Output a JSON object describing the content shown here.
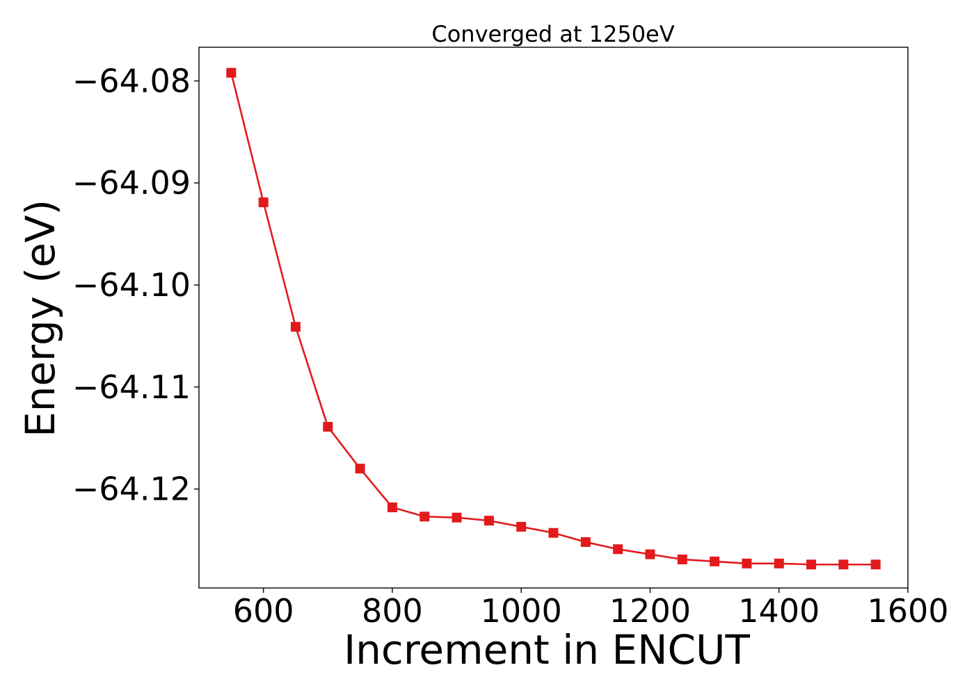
{
  "chart_data": {
    "type": "line",
    "title": "Converged at 1250eV",
    "xlabel": "Increment in ENCUT",
    "ylabel": "Energy (eV)",
    "xlim": [
      500,
      1600
    ],
    "ylim": [
      -64.1297,
      -64.0767
    ],
    "xticks": [
      600,
      800,
      1000,
      1200,
      1400,
      1600
    ],
    "xtick_labels": [
      "600",
      "800",
      "1000",
      "1200",
      "1400",
      "1600"
    ],
    "yticks": [
      -64.08,
      -64.09,
      -64.1,
      -64.11,
      -64.12
    ],
    "ytick_labels": [
      "−64.08",
      "−64.09",
      "−64.10",
      "−64.11",
      "−64.12"
    ],
    "grid": false,
    "series": [
      {
        "color": "#e31a1c",
        "marker": "square",
        "x": [
          550,
          600,
          650,
          700,
          750,
          800,
          850,
          900,
          950,
          1000,
          1050,
          1100,
          1150,
          1200,
          1250,
          1300,
          1350,
          1400,
          1450,
          1500,
          1550
        ],
        "y": [
          -64.0792,
          -64.0919,
          -64.1041,
          -64.1139,
          -64.118,
          -64.1218,
          -64.1227,
          -64.1228,
          -64.1231,
          -64.1237,
          -64.1243,
          -64.1252,
          -64.1259,
          -64.1264,
          -64.1269,
          -64.1271,
          -64.1273,
          -64.1273,
          -64.1274,
          -64.1274,
          -64.1274
        ]
      }
    ]
  }
}
